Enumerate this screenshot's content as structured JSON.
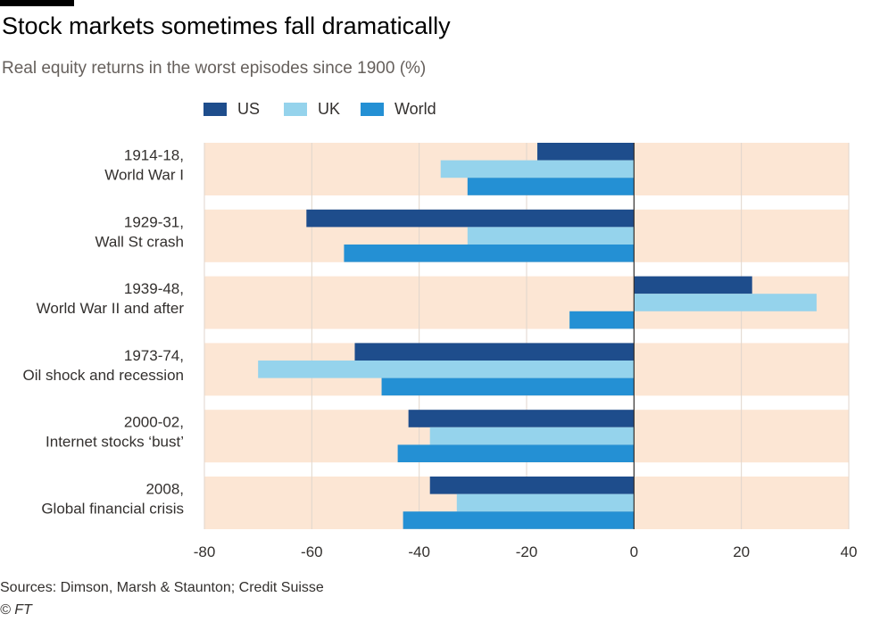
{
  "header": {
    "title": "Stock markets sometimes fall dramatically",
    "subtitle": "Real equity returns in the worst episodes since 1900 (%)"
  },
  "footer": {
    "source": "Sources: Dimson, Marsh & Staunton; Credit Suisse",
    "copyright": "© FT"
  },
  "colors": {
    "band": "#fce6d4",
    "grid": "#e0d6cc",
    "zero_line": "#33302e",
    "us": "#1e4d8c",
    "uk": "#95d3ec",
    "world": "#2490d4"
  },
  "chart_data": {
    "type": "bar",
    "orientation": "horizontal",
    "title": "Stock markets sometimes fall dramatically",
    "subtitle": "Real equity returns in the worst episodes since 1900 (%)",
    "xlabel": "",
    "ylabel": "",
    "xlim": [
      -80,
      40
    ],
    "xticks": [
      -80,
      -60,
      -40,
      -20,
      0,
      20,
      40
    ],
    "grid": true,
    "legend_position": "top",
    "categories": [
      [
        "1914-18,",
        "World War I"
      ],
      [
        "1929-31,",
        "Wall St crash"
      ],
      [
        "1939-48,",
        "World War II and after"
      ],
      [
        "1973-74,",
        "Oil shock and recession"
      ],
      [
        "2000-02,",
        "Internet stocks ‘bust’"
      ],
      [
        "2008,",
        "Global financial crisis"
      ]
    ],
    "series": [
      {
        "name": "US",
        "color": "#1e4d8c",
        "values": [
          -18,
          -61,
          22,
          -52,
          -42,
          -38
        ]
      },
      {
        "name": "UK",
        "color": "#95d3ec",
        "values": [
          -36,
          -31,
          34,
          -70,
          -38,
          -33
        ]
      },
      {
        "name": "World",
        "color": "#2490d4",
        "values": [
          -31,
          -54,
          -12,
          -47,
          -44,
          -43
        ]
      }
    ]
  }
}
